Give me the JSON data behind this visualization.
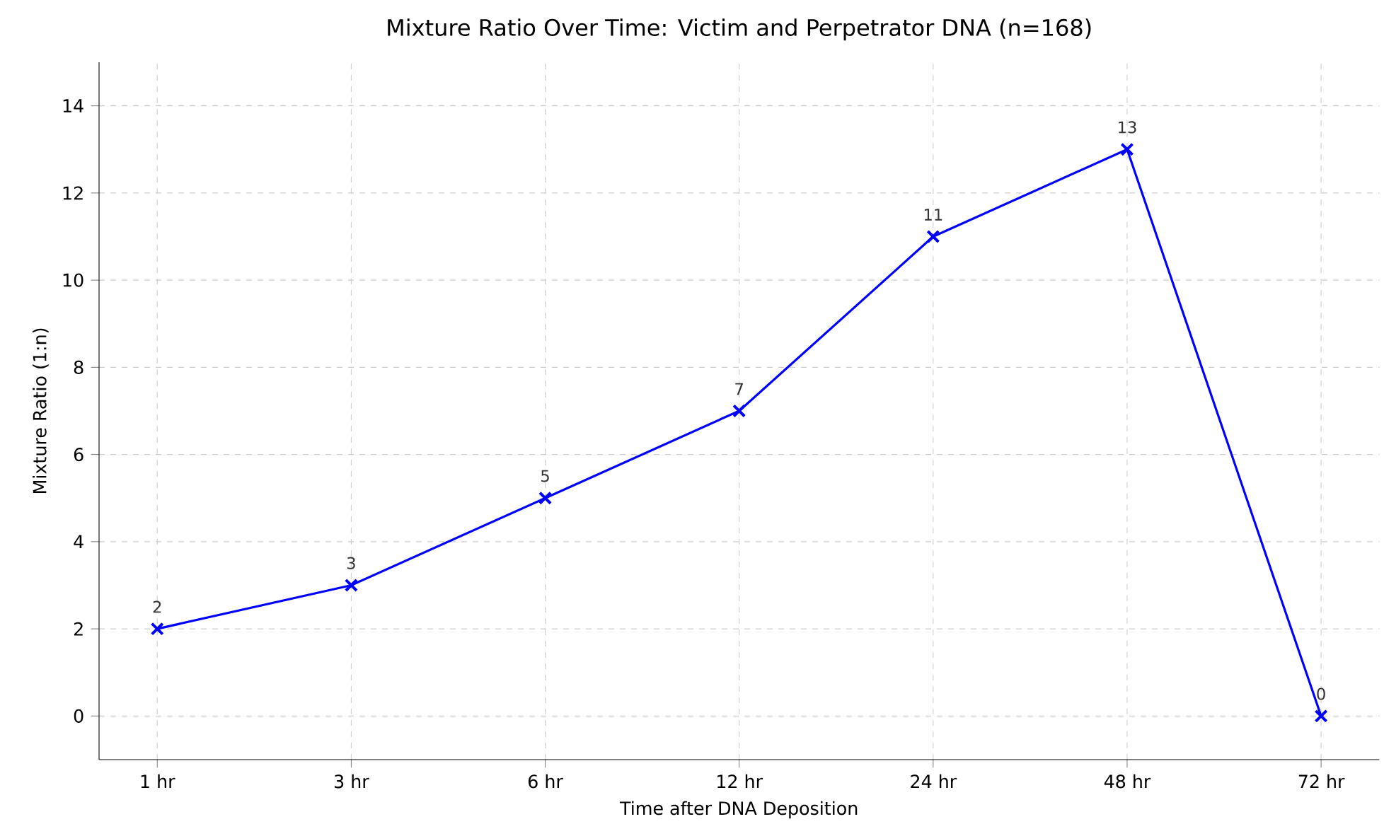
{
  "chart_data": {
    "type": "line",
    "title": "Mixture Ratio Over Time: Victim and Perpetrator DNA (n=168)",
    "xlabel": "Time after DNA Deposition",
    "ylabel": "Mixture Ratio (1:n)",
    "categories": [
      "1 hr",
      "3 hr",
      "6 hr",
      "12 hr",
      "24 hr",
      "48 hr",
      "72 hr"
    ],
    "values": [
      2,
      3,
      5,
      7,
      11,
      13,
      0
    ],
    "color": "#0000ff",
    "marker": "cross",
    "line_style": "solid",
    "data_labels": true,
    "grid": true,
    "ylim": [
      -1,
      15
    ],
    "yticks": [
      0,
      2,
      4,
      6,
      8,
      10,
      12,
      14
    ]
  }
}
